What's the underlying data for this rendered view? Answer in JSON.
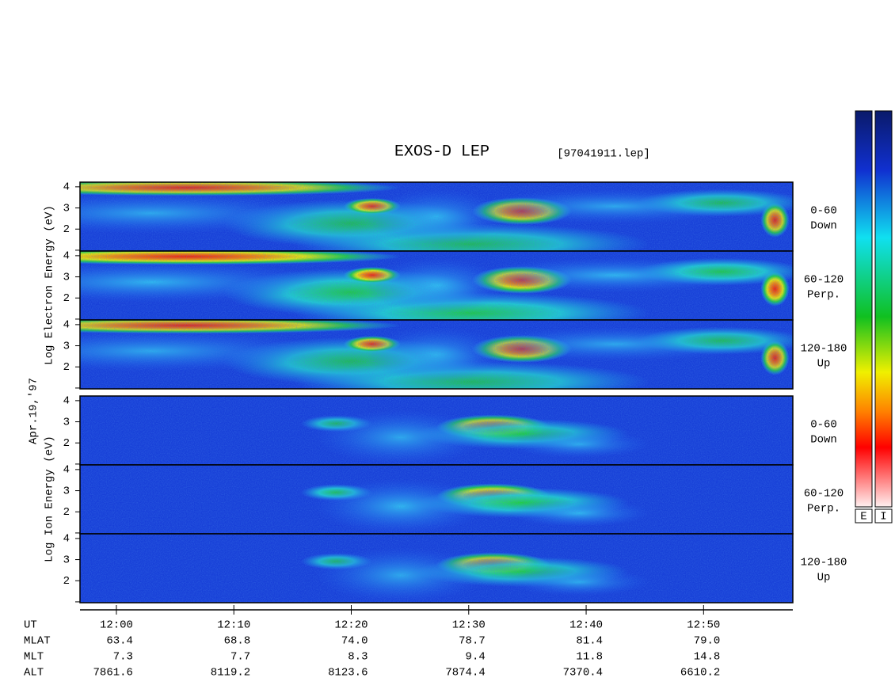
{
  "chart_data": {
    "type": "spectrogram",
    "title": "EXOS-D LEP",
    "subtitle": "[97041911.lep]",
    "date_label": "Apr.19,'97",
    "xlim": [
      716.9,
      777.6
    ],
    "xticks": [
      {
        "value": 720,
        "label": "12:00"
      },
      {
        "value": 730,
        "label": "12:10"
      },
      {
        "value": 740,
        "label": "12:20"
      },
      {
        "value": 750,
        "label": "12:30"
      },
      {
        "value": 760,
        "label": "12:40"
      },
      {
        "value": 770,
        "label": "12:50"
      }
    ],
    "ylim": [
      0.96,
      4.22
    ],
    "yticks": [
      {
        "value": 1,
        "label": null
      },
      2,
      3,
      4
    ],
    "groups": [
      {
        "ylabel": "Log Electron Energy (eV)",
        "panels": [
          {
            "label": [
              "0-60",
              "Down"
            ]
          },
          {
            "label": [
              "60-120",
              "Perp."
            ]
          },
          {
            "label": [
              "120-180",
              "Up"
            ]
          }
        ]
      },
      {
        "ylabel": "Log Ion Energy (eV)",
        "panels": [
          {
            "label": [
              "0-60",
              "Down"
            ]
          },
          {
            "label": [
              "60-120",
              "Perp."
            ]
          },
          {
            "label": [
              "120-180",
              "Up"
            ]
          }
        ]
      }
    ],
    "colorbar_labels": [
      "E",
      "I"
    ],
    "table": [
      {
        "name": "UT"
      },
      {
        "name": "MLAT",
        "values": [
          "63.4",
          "68.8",
          "74.0",
          "78.7",
          "81.4",
          "79.0"
        ]
      },
      {
        "name": "MLT",
        "values": [
          "7.3",
          "7.7",
          "8.3",
          "9.4",
          "11.8",
          "14.8"
        ]
      },
      {
        "name": "ALT",
        "values": [
          "7861.6",
          "8119.2",
          "8123.6",
          "7874.4",
          "7370.4",
          "6610.2"
        ]
      }
    ]
  }
}
